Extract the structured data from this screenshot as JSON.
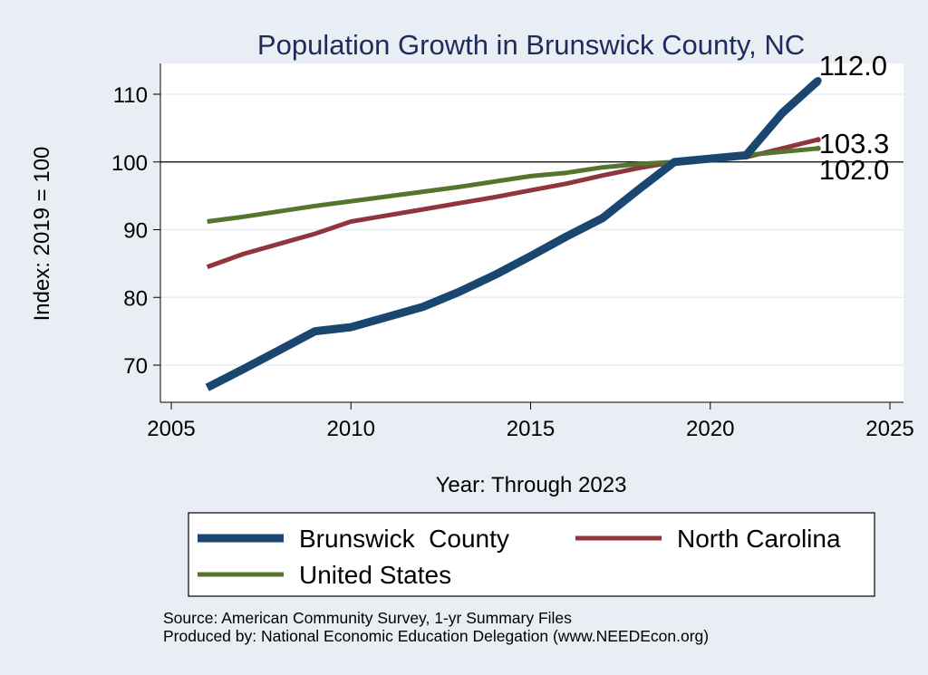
{
  "chart_data": {
    "type": "line",
    "title": "Population Growth in Brunswick County, NC",
    "xlabel": "Year: Through 2023",
    "ylabel": "Index: 2019 = 100",
    "xlim": [
      2005,
      2025
    ],
    "ylim": [
      64,
      115
    ],
    "xticks": [
      2005,
      2010,
      2015,
      2020,
      2025
    ],
    "yticks": [
      70,
      80,
      90,
      100,
      110
    ],
    "reference_line": 100,
    "grid": true,
    "legend_position": "bottom",
    "series": [
      {
        "name": "Brunswick  County",
        "color": "#1a476f",
        "x": [
          2006,
          2007,
          2008,
          2009,
          2010,
          2011,
          2012,
          2013,
          2014,
          2015,
          2016,
          2017,
          2018,
          2019,
          2021,
          2022,
          2023
        ],
        "values": [
          66.7,
          69.4,
          72.2,
          75.0,
          75.6,
          77.1,
          78.6,
          80.8,
          83.3,
          86.1,
          89.0,
          91.7,
          95.9,
          100.0,
          101.0,
          107.2,
          112.0
        ],
        "end_label": "112.0"
      },
      {
        "name": "North Carolina",
        "color": "#90353b",
        "x": [
          2006,
          2007,
          2008,
          2009,
          2010,
          2011,
          2012,
          2013,
          2014,
          2015,
          2016,
          2017,
          2018,
          2019,
          2020,
          2021,
          2022,
          2023
        ],
        "values": [
          84.5,
          86.4,
          87.9,
          89.4,
          91.2,
          92.1,
          93.0,
          93.9,
          94.8,
          95.8,
          96.8,
          98.0,
          99.1,
          100.0,
          100.5,
          100.7,
          102.0,
          103.3
        ],
        "end_label": "103.3"
      },
      {
        "name": "United States",
        "color": "#55752f",
        "x": [
          2006,
          2007,
          2008,
          2009,
          2010,
          2011,
          2012,
          2013,
          2014,
          2015,
          2016,
          2017,
          2018,
          2019,
          2020,
          2021,
          2022,
          2023
        ],
        "values": [
          91.2,
          91.9,
          92.7,
          93.5,
          94.2,
          94.9,
          95.6,
          96.3,
          97.1,
          97.9,
          98.4,
          99.2,
          99.7,
          100.0,
          100.6,
          101.0,
          101.5,
          102.0
        ],
        "end_label": "102.0"
      }
    ]
  },
  "source": "Source: American Community Survey, 1-yr Summary Files",
  "producer": "Produced by: National Economic Education Delegation (www.NEEDEcon.org)"
}
